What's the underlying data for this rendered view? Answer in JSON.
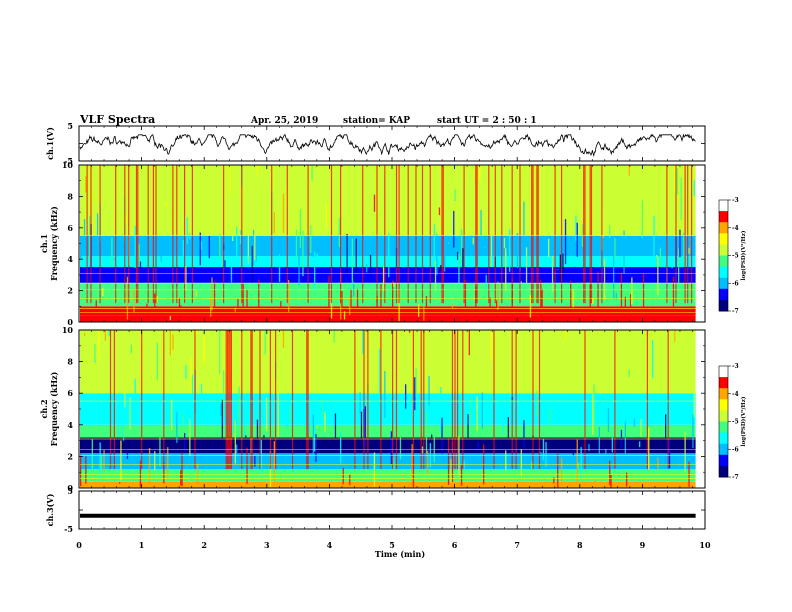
{
  "header": {
    "title": "VLF Spectra",
    "date": "Apr. 25, 2019",
    "station": "station= KAP",
    "start": "start  UT  =   2 : 50 : 1"
  },
  "colorbar_label": "log(PSD)(V²/Hz)",
  "colors": {
    "spectrum": [
      "#00007f",
      "#0000ff",
      "#00bfff",
      "#00ffff",
      "#40ff80",
      "#ccff33",
      "#ffff00",
      "#ffa500",
      "#ff0000",
      "#ffffff"
    ]
  },
  "chart_data": [
    {
      "type": "line",
      "name": "ch1-waveform",
      "ylabel": "ch.1(V)",
      "ylim": [
        -5,
        5
      ],
      "yticks": [
        "5",
        "-5"
      ],
      "xlim": [
        0,
        10
      ],
      "approx_range": [
        -3.5,
        2.5
      ]
    },
    {
      "type": "heatmap",
      "name": "ch1-spectrogram",
      "ylabel": "ch.1\nFrequency (kHz)",
      "ylim": [
        0,
        10
      ],
      "yticks": [
        "0",
        "2",
        "4",
        "6",
        "8",
        "10"
      ],
      "xlim": [
        0,
        9.85
      ],
      "value_range": [
        -7,
        -3
      ],
      "colorbar_ticks": [
        "-3",
        "-4",
        "-5",
        "-6",
        "-7"
      ],
      "bands_khz": [
        {
          "from": 0,
          "to": 0.4,
          "level": -3.4
        },
        {
          "from": 0.4,
          "to": 1.0,
          "level": -3.1
        },
        {
          "from": 1.0,
          "to": 2.5,
          "level": -5.2
        },
        {
          "from": 2.5,
          "to": 3.5,
          "level": -6.3
        },
        {
          "from": 3.5,
          "to": 4.2,
          "level": -5.6
        },
        {
          "from": 4.2,
          "to": 5.5,
          "level": -5.7
        },
        {
          "from": 5.5,
          "to": 10,
          "level": -4.6
        }
      ]
    },
    {
      "type": "heatmap",
      "name": "ch2-spectrogram",
      "ylabel": "ch.2\nFrequency (kHz)",
      "ylim": [
        0,
        10
      ],
      "yticks": [
        "0",
        "2",
        "4",
        "6",
        "8",
        "10"
      ],
      "xlim": [
        0,
        9.85
      ],
      "value_range": [
        -7,
        -3
      ],
      "colorbar_ticks": [
        "-3",
        "-4",
        "-5",
        "-6",
        "-7"
      ],
      "bands_khz": [
        {
          "from": 0,
          "to": 0.4,
          "level": -3.5
        },
        {
          "from": 0.4,
          "to": 1.2,
          "level": -4.8
        },
        {
          "from": 1.2,
          "to": 2.2,
          "level": -5.8
        },
        {
          "from": 2.2,
          "to": 3.2,
          "level": -6.6
        },
        {
          "from": 3.2,
          "to": 4.0,
          "level": -5.2
        },
        {
          "from": 4.0,
          "to": 6.0,
          "level": -5.5
        },
        {
          "from": 6.0,
          "to": 10,
          "level": -4.6
        }
      ]
    },
    {
      "type": "line",
      "name": "ch3-waveform",
      "ylabel": "ch.3(V)",
      "ylim": [
        -5,
        5
      ],
      "yticks": [
        "5",
        "-5"
      ],
      "xlim": [
        0,
        10
      ],
      "constant_value": -1.5
    }
  ],
  "xaxis": {
    "label": "Time (min)",
    "ticks": [
      "0",
      "1",
      "2",
      "3",
      "4",
      "5",
      "6",
      "7",
      "8",
      "9",
      "10"
    ],
    "range": [
      0,
      10
    ],
    "data_end": 9.85
  }
}
